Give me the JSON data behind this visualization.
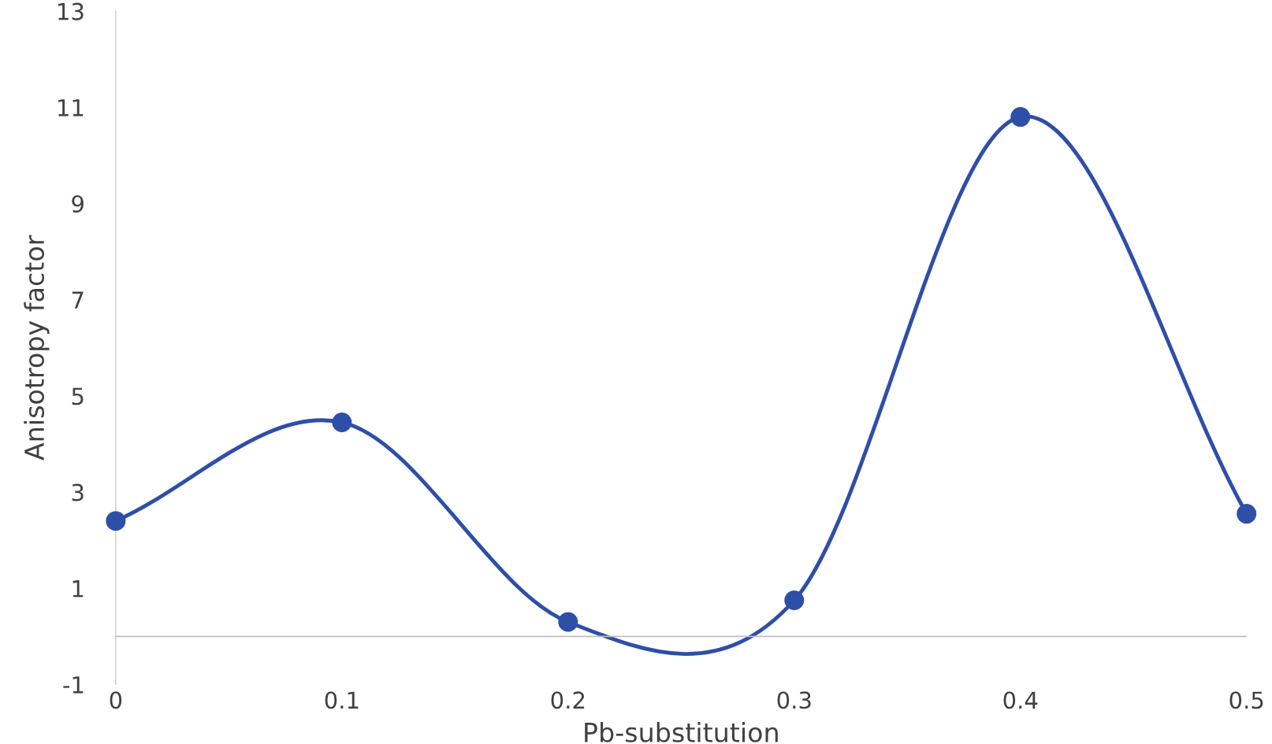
{
  "chart_data": {
    "type": "line",
    "xlabel": "Pb-substitution",
    "ylabel": "Anisotropy factor",
    "x": [
      0,
      0.1,
      0.2,
      0.3,
      0.4,
      0.5
    ],
    "series": [
      {
        "color": "#2e4fa8",
        "values": [
          2.4,
          4.45,
          0.3,
          0.75,
          10.8,
          2.55
        ]
      }
    ],
    "xlim": [
      0,
      0.5
    ],
    "xticks": [
      0,
      0.1,
      0.2,
      0.3,
      0.4,
      0.5
    ],
    "ylim": [
      -1,
      13
    ],
    "yticks": [
      -1,
      1,
      3,
      5,
      7,
      9,
      11,
      13
    ],
    "marker": "circle",
    "line_style": "solid",
    "grid": false,
    "legend": false
  }
}
